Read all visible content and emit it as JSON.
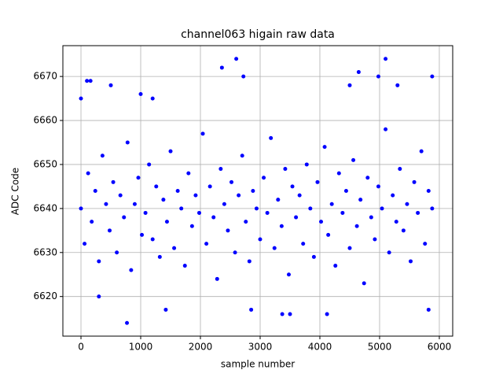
{
  "chart_data": {
    "type": "scatter",
    "title": "channel063 higain raw data",
    "x_label": "sample number",
    "y_label": "ADC Code",
    "xlim": [
      -303,
      6224
    ],
    "ylim": [
      6611,
      6677
    ],
    "xticks": [
      0,
      1000,
      2000,
      3000,
      4000,
      5000,
      6000
    ],
    "yticks": [
      6620,
      6630,
      6640,
      6650,
      6660,
      6670
    ],
    "grid": true,
    "series": [
      {
        "color": "#0000ff",
        "x": [
          0,
          60,
          120,
          180,
          240,
          300,
          360,
          420,
          480,
          540,
          600,
          660,
          720,
          780,
          840,
          900,
          960,
          1020,
          1080,
          1140,
          1200,
          1260,
          1320,
          1380,
          1440,
          1500,
          1560,
          1620,
          1680,
          1740,
          1800,
          1860,
          1920,
          1980,
          2040,
          2100,
          2160,
          2220,
          2280,
          2340,
          2400,
          2460,
          2520,
          2580,
          2640,
          2700,
          2760,
          2820,
          2880,
          2940,
          3000,
          3060,
          3120,
          3180,
          3240,
          3300,
          3360,
          3420,
          3480,
          3540,
          3600,
          3660,
          3720,
          3780,
          3840,
          3900,
          3960,
          4020,
          4080,
          4140,
          4200,
          4260,
          4320,
          4380,
          4440,
          4500,
          4560,
          4620,
          4680,
          4740,
          4800,
          4860,
          4920,
          4980,
          5040,
          5100,
          5160,
          5220,
          5280,
          5340,
          5400,
          5460,
          5520,
          5580,
          5640,
          5700,
          5760,
          5820,
          5880,
          2360,
          2600,
          2720,
          5100,
          4980,
          5880,
          100,
          160,
          770,
          3370,
          4120,
          5820,
          0,
          500,
          4650,
          1200,
          1420,
          2850,
          3500,
          4500,
          1000,
          300,
          5300
        ],
        "values": [
          6640,
          6632,
          6648,
          6637,
          6644,
          6628,
          6652,
          6641,
          6635,
          6646,
          6630,
          6643,
          6638,
          6655,
          6626,
          6641,
          6647,
          6634,
          6639,
          6650,
          6633,
          6645,
          6629,
          6642,
          6637,
          6653,
          6631,
          6644,
          6640,
          6627,
          6648,
          6636,
          6643,
          6639,
          6657,
          6632,
          6645,
          6638,
          6624,
          6649,
          6641,
          6635,
          6646,
          6630,
          6643,
          6652,
          6637,
          6628,
          6644,
          6640,
          6633,
          6647,
          6639,
          6656,
          6631,
          6642,
          6636,
          6649,
          6625,
          6645,
          6638,
          6643,
          6632,
          6650,
          6640,
          6629,
          6646,
          6637,
          6654,
          6634,
          6641,
          6627,
          6648,
          6639,
          6644,
          6631,
          6651,
          6636,
          6642,
          6623,
          6647,
          6638,
          6633,
          6645,
          6640,
          6658,
          6630,
          6643,
          6637,
          6649,
          6635,
          6641,
          6628,
          6646,
          6639,
          6653,
          6632,
          6644,
          6640,
          6672,
          6674,
          6670,
          6674,
          6670,
          6670,
          6669,
          6669,
          6614,
          6616,
          6616,
          6617,
          6665,
          6668,
          6671,
          6665,
          6617,
          6617,
          6616,
          6668,
          6666,
          6620,
          6668
        ]
      }
    ]
  }
}
